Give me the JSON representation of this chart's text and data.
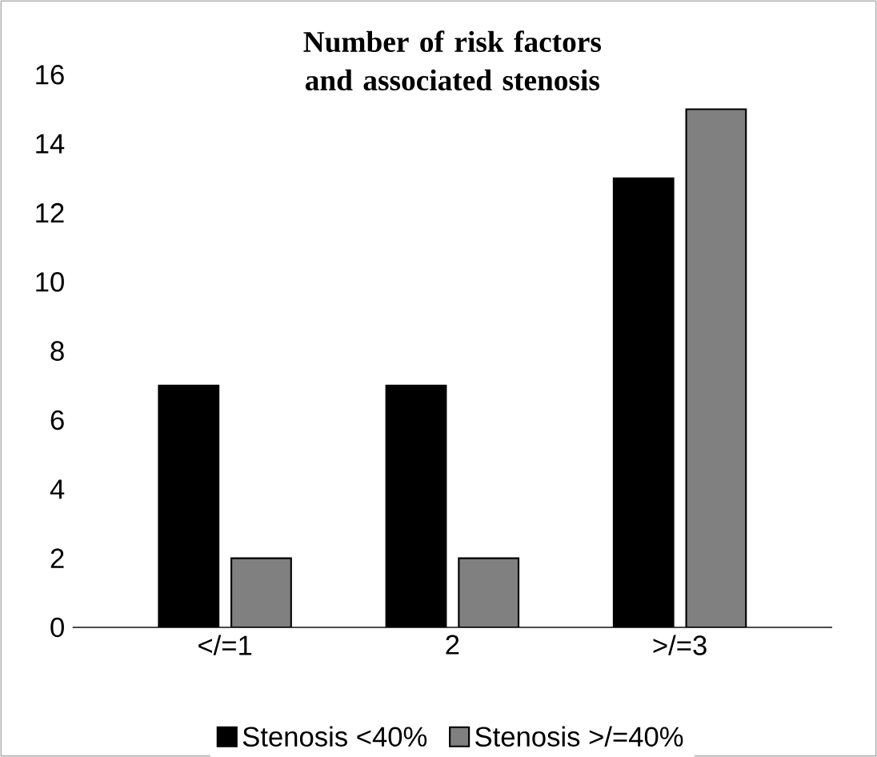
{
  "chart_data": {
    "type": "bar",
    "title": "Number of risk factors and associated stenosis",
    "categories": [
      "</=1",
      "2",
      ">/=3"
    ],
    "series": [
      {
        "name": "Stenosis <40%",
        "color": "#000000",
        "values": [
          7,
          7,
          13
        ]
      },
      {
        "name": "Stenosis >/=40%",
        "color": "#808080",
        "values": [
          2,
          2,
          15
        ]
      }
    ],
    "ylim": [
      0,
      16
    ],
    "yticks": [
      0,
      2,
      4,
      6,
      8,
      10,
      12,
      14,
      16
    ],
    "legend": "bottom"
  }
}
